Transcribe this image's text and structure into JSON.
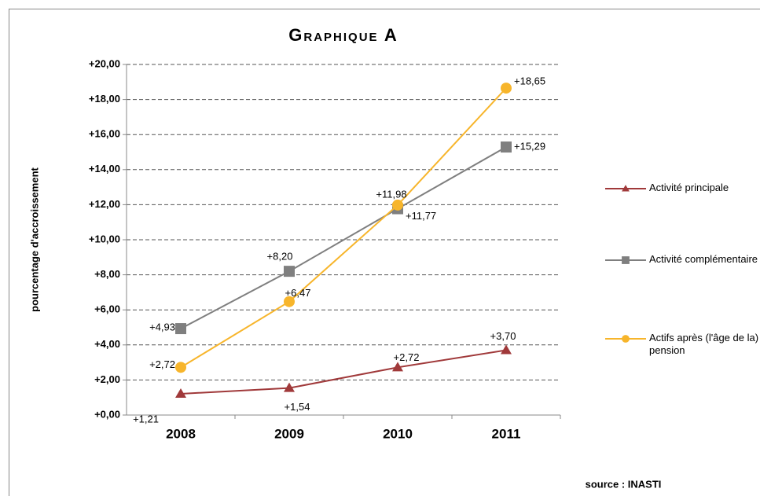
{
  "chart_data": {
    "type": "line",
    "title": "Graphique A",
    "y_label": "pourcentage d'accroissement",
    "source": "source : INASTI",
    "categories": [
      "2008",
      "2009",
      "2010",
      "2011"
    ],
    "series": [
      {
        "name": "Activité principale",
        "color": "#a0393a",
        "marker": "triangle",
        "values": [
          1.21,
          1.54,
          2.72,
          3.7
        ],
        "value_labels": [
          "+1,21",
          "+1,54",
          "+2,72",
          "+3,70"
        ]
      },
      {
        "name": "Activité complémentaire",
        "color": "#7f7f7f",
        "marker": "square",
        "values": [
          4.93,
          8.2,
          11.77,
          15.29
        ],
        "value_labels": [
          "+4,93",
          "+8,20",
          "+11,77",
          "+15,29"
        ]
      },
      {
        "name": "Actifs après (l'âge de la) pension",
        "color": "#f7b52b",
        "marker": "circle",
        "values": [
          2.72,
          6.47,
          11.98,
          18.65
        ],
        "value_labels": [
          "+2,72",
          "+6,47",
          "+11,98",
          "+18,65"
        ]
      }
    ],
    "ylim": [
      0,
      20
    ],
    "yticks": [
      {
        "value": 0,
        "label": "+0,00"
      },
      {
        "value": 2,
        "label": "+2,00"
      },
      {
        "value": 4,
        "label": "+4,00"
      },
      {
        "value": 6,
        "label": "+6,00"
      },
      {
        "value": 8,
        "label": "+8,00"
      },
      {
        "value": 10,
        "label": "+10,00"
      },
      {
        "value": 12,
        "label": "+12,00"
      },
      {
        "value": 14,
        "label": "+14,00"
      },
      {
        "value": 16,
        "label": "+16,00"
      },
      {
        "value": 18,
        "label": "+18,00"
      },
      {
        "value": 20,
        "label": "+20,00"
      }
    ],
    "grid": true,
    "legend": "right"
  }
}
